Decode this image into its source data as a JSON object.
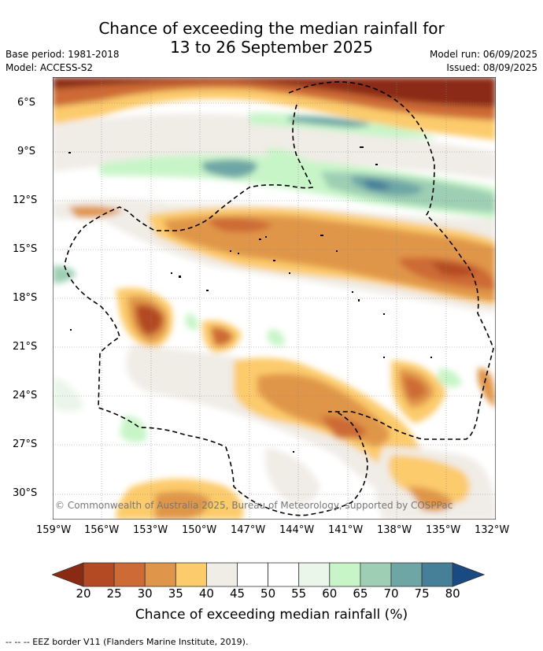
{
  "title": {
    "line1": "Chance of exceeding the median rainfall for",
    "line2": "13 to 26 September 2025"
  },
  "meta": {
    "base_period": "Base period: 1981-2018",
    "model": "Model: ACCESS-S2",
    "model_run": "Model run: 06/09/2025",
    "issued": "Issued: 08/09/2025"
  },
  "map": {
    "lat_labels": [
      "6°S",
      "9°S",
      "12°S",
      "15°S",
      "18°S",
      "21°S",
      "24°S",
      "27°S",
      "30°S"
    ],
    "lon_labels": [
      "159°W",
      "156°W",
      "153°W",
      "150°W",
      "147°W",
      "144°W",
      "141°W",
      "138°W",
      "135°W",
      "132°W"
    ],
    "copyright": "© Commonwealth of Australia 2025, Bureau of Meteorology, supported by COSPPac"
  },
  "colorbar": {
    "labels": [
      "20",
      "25",
      "30",
      "35",
      "40",
      "45",
      "50",
      "55",
      "60",
      "65",
      "70",
      "75",
      "80"
    ],
    "colors": [
      "#8b2a12",
      "#b34a24",
      "#cd6a36",
      "#e0964a",
      "#fccb6c",
      "#f0ece6",
      "#ffffff",
      "#ffffff",
      "#eaf6ea",
      "#c8f5c8",
      "#9ecfb4",
      "#6ea6a6",
      "#467f98",
      "#1a4a82"
    ],
    "title": "Chance of exceeding median rainfall (%)"
  },
  "footer": {
    "legend": "--  --  -- EEZ border V11 (Flanders Marine Institute, 2019)."
  }
}
